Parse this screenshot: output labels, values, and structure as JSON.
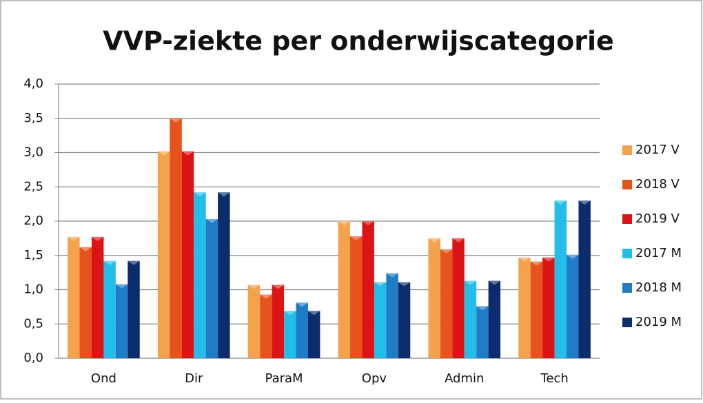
{
  "chart_data": {
    "type": "bar",
    "title": "VVP-ziekte per onderwijscategorie",
    "categories": [
      "Ond",
      "Dir",
      "ParaM",
      "Opv",
      "Admin",
      "Tech"
    ],
    "series": [
      {
        "name": "2017 V",
        "color": "#f4a24c",
        "values": [
          1.77,
          3.02,
          1.07,
          2.0,
          1.75,
          1.47
        ]
      },
      {
        "name": "2018 V",
        "color": "#e6531c",
        "values": [
          1.62,
          3.5,
          0.93,
          1.78,
          1.59,
          1.41
        ]
      },
      {
        "name": "2019 V",
        "color": "#dd1416",
        "values": [
          1.77,
          3.02,
          1.07,
          2.0,
          1.75,
          1.47
        ]
      },
      {
        "name": "2017 M",
        "color": "#22bde8",
        "values": [
          1.42,
          2.42,
          0.69,
          1.11,
          1.13,
          2.3
        ]
      },
      {
        "name": "2018 M",
        "color": "#1f7cc6",
        "values": [
          1.08,
          2.03,
          0.81,
          1.24,
          0.76,
          1.51
        ]
      },
      {
        "name": "2019 M",
        "color": "#0c2c6c",
        "values": [
          1.42,
          2.42,
          0.69,
          1.11,
          1.13,
          2.3
        ]
      }
    ],
    "ylim": [
      0,
      4
    ],
    "yticks": [
      {
        "value": 0,
        "label": "0,0"
      },
      {
        "value": 0.5,
        "label": "0,5"
      },
      {
        "value": 1,
        "label": "1,0"
      },
      {
        "value": 1.5,
        "label": "1,5"
      },
      {
        "value": 2,
        "label": "2,0"
      },
      {
        "value": 2.5,
        "label": "2,5"
      },
      {
        "value": 3,
        "label": "3,0"
      },
      {
        "value": 3.5,
        "label": "3,5"
      },
      {
        "value": 4,
        "label": "4,0"
      }
    ],
    "grid": true,
    "legend": "right"
  }
}
